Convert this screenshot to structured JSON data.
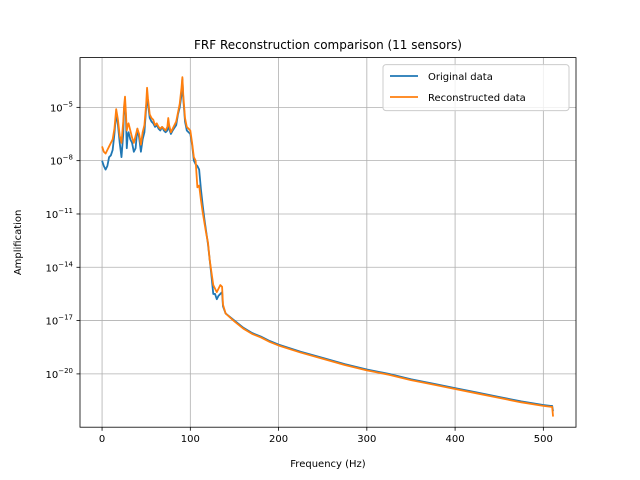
{
  "chart_data": {
    "type": "line",
    "title": "FRF Reconstruction comparison (11 sensors)",
    "xlabel": "Frequency (Hz)",
    "ylabel": "Amplification",
    "xlim": [
      -25,
      537
    ],
    "ylim_exponent": [
      -23,
      -2.2
    ],
    "yscale": "log",
    "grid": true,
    "legend_position": "top-right",
    "x_ticks": [
      {
        "value": 0,
        "label": "0"
      },
      {
        "value": 100,
        "label": "100"
      },
      {
        "value": 200,
        "label": "200"
      },
      {
        "value": 300,
        "label": "300"
      },
      {
        "value": 400,
        "label": "400"
      },
      {
        "value": 500,
        "label": "500"
      }
    ],
    "y_ticks": [
      {
        "exp": -5,
        "label": "10",
        "sup": "−5"
      },
      {
        "exp": -8,
        "label": "10",
        "sup": "−8"
      },
      {
        "exp": -11,
        "label": "10",
        "sup": "−11"
      },
      {
        "exp": -14,
        "label": "10",
        "sup": "−14"
      },
      {
        "exp": -17,
        "label": "10",
        "sup": "−17"
      },
      {
        "exp": -20,
        "label": "10",
        "sup": "−20"
      }
    ],
    "series": [
      {
        "name": "Original data",
        "color": "#1f77b4",
        "points": [
          [
            0,
            -8.0
          ],
          [
            2,
            -8.3
          ],
          [
            4,
            -8.5
          ],
          [
            6,
            -8.3
          ],
          [
            8,
            -7.8
          ],
          [
            10,
            -7.7
          ],
          [
            12,
            -7.4
          ],
          [
            14,
            -6.5
          ],
          [
            16,
            -5.3
          ],
          [
            18,
            -6.0
          ],
          [
            20,
            -7.0
          ],
          [
            22,
            -7.8
          ],
          [
            24,
            -6.5
          ],
          [
            25,
            -5.0
          ],
          [
            26,
            -4.7
          ],
          [
            27,
            -5.5
          ],
          [
            28,
            -7.3
          ],
          [
            29,
            -6.6
          ],
          [
            30,
            -6.4
          ],
          [
            32,
            -6.8
          ],
          [
            34,
            -7.0
          ],
          [
            36,
            -7.5
          ],
          [
            38,
            -7.3
          ],
          [
            40,
            -6.2
          ],
          [
            42,
            -6.7
          ],
          [
            44,
            -7.5
          ],
          [
            46,
            -6.8
          ],
          [
            48,
            -6.4
          ],
          [
            50,
            -5.0
          ],
          [
            51,
            -4.3
          ],
          [
            52,
            -4.8
          ],
          [
            54,
            -5.6
          ],
          [
            56,
            -5.8
          ],
          [
            58,
            -5.9
          ],
          [
            60,
            -6.1
          ],
          [
            62,
            -6.0
          ],
          [
            64,
            -6.2
          ],
          [
            66,
            -6.3
          ],
          [
            68,
            -6.1
          ],
          [
            70,
            -6.3
          ],
          [
            72,
            -6.4
          ],
          [
            74,
            -6.3
          ],
          [
            75,
            -5.9
          ],
          [
            76,
            -6.2
          ],
          [
            78,
            -6.5
          ],
          [
            80,
            -6.3
          ],
          [
            84,
            -6.0
          ],
          [
            86,
            -5.4
          ],
          [
            88,
            -5.0
          ],
          [
            90,
            -4.3
          ],
          [
            91,
            -3.4
          ],
          [
            92,
            -4.5
          ],
          [
            94,
            -5.8
          ],
          [
            96,
            -6.3
          ],
          [
            98,
            -6.4
          ],
          [
            100,
            -6.5
          ],
          [
            102,
            -7.1
          ],
          [
            104,
            -8.0
          ],
          [
            106,
            -8.2
          ],
          [
            108,
            -8.3
          ],
          [
            110,
            -8.5
          ],
          [
            112,
            -9.6
          ],
          [
            114,
            -10.5
          ],
          [
            116,
            -11.3
          ],
          [
            118,
            -12.0
          ],
          [
            120,
            -12.7
          ],
          [
            122,
            -13.6
          ],
          [
            124,
            -14.5
          ],
          [
            126,
            -15.5
          ],
          [
            128,
            -15.5
          ],
          [
            130,
            -15.8
          ],
          [
            132,
            -15.6
          ],
          [
            134,
            -15.5
          ],
          [
            136,
            -15.4
          ],
          [
            137,
            -16.2
          ],
          [
            140,
            -16.6
          ],
          [
            150,
            -17.0
          ],
          [
            160,
            -17.4
          ],
          [
            170,
            -17.7
          ],
          [
            180,
            -17.9
          ],
          [
            190,
            -18.15
          ],
          [
            200,
            -18.35
          ],
          [
            225,
            -18.75
          ],
          [
            250,
            -19.1
          ],
          [
            275,
            -19.45
          ],
          [
            300,
            -19.75
          ],
          [
            325,
            -20.0
          ],
          [
            350,
            -20.3
          ],
          [
            375,
            -20.55
          ],
          [
            400,
            -20.8
          ],
          [
            425,
            -21.05
          ],
          [
            450,
            -21.3
          ],
          [
            475,
            -21.55
          ],
          [
            500,
            -21.75
          ],
          [
            508,
            -21.8
          ],
          [
            510,
            -21.8
          ],
          [
            511,
            -22.1
          ]
        ]
      },
      {
        "name": "Reconstructed data",
        "color": "#ff7f0e",
        "points": [
          [
            0,
            -7.2
          ],
          [
            2,
            -7.5
          ],
          [
            4,
            -7.6
          ],
          [
            6,
            -7.4
          ],
          [
            8,
            -7.2
          ],
          [
            10,
            -7.0
          ],
          [
            12,
            -6.8
          ],
          [
            14,
            -6.2
          ],
          [
            16,
            -5.1
          ],
          [
            18,
            -5.7
          ],
          [
            20,
            -6.6
          ],
          [
            22,
            -7.0
          ],
          [
            24,
            -5.8
          ],
          [
            25,
            -4.9
          ],
          [
            26,
            -4.4
          ],
          [
            27,
            -5.3
          ],
          [
            28,
            -6.3
          ],
          [
            29,
            -6.0
          ],
          [
            30,
            -5.9
          ],
          [
            32,
            -6.3
          ],
          [
            34,
            -6.7
          ],
          [
            36,
            -7.0
          ],
          [
            38,
            -6.6
          ],
          [
            40,
            -6.2
          ],
          [
            42,
            -6.5
          ],
          [
            44,
            -7.1
          ],
          [
            46,
            -6.4
          ],
          [
            48,
            -6.0
          ],
          [
            50,
            -4.8
          ],
          [
            51,
            -3.9
          ],
          [
            52,
            -4.5
          ],
          [
            54,
            -5.4
          ],
          [
            56,
            -5.6
          ],
          [
            58,
            -5.7
          ],
          [
            60,
            -6.0
          ],
          [
            62,
            -5.9
          ],
          [
            64,
            -6.1
          ],
          [
            66,
            -6.2
          ],
          [
            68,
            -6.1
          ],
          [
            70,
            -6.2
          ],
          [
            72,
            -6.3
          ],
          [
            74,
            -6.1
          ],
          [
            75,
            -5.6
          ],
          [
            76,
            -6.0
          ],
          [
            78,
            -6.4
          ],
          [
            80,
            -6.2
          ],
          [
            84,
            -5.8
          ],
          [
            86,
            -5.3
          ],
          [
            88,
            -4.8
          ],
          [
            90,
            -3.9
          ],
          [
            91,
            -3.3
          ],
          [
            92,
            -4.3
          ],
          [
            94,
            -5.6
          ],
          [
            96,
            -6.1
          ],
          [
            98,
            -6.2
          ],
          [
            100,
            -6.3
          ],
          [
            102,
            -7.0
          ],
          [
            104,
            -7.8
          ],
          [
            106,
            -8.0
          ],
          [
            108,
            -9.5
          ],
          [
            110,
            -9.4
          ],
          [
            112,
            -10.2
          ],
          [
            114,
            -10.9
          ],
          [
            116,
            -11.5
          ],
          [
            118,
            -12.1
          ],
          [
            120,
            -12.6
          ],
          [
            122,
            -13.6
          ],
          [
            124,
            -14.3
          ],
          [
            126,
            -15.0
          ],
          [
            128,
            -15.2
          ],
          [
            130,
            -15.4
          ],
          [
            132,
            -15.2
          ],
          [
            134,
            -15.0
          ],
          [
            136,
            -15.1
          ],
          [
            137,
            -16.1
          ],
          [
            140,
            -16.6
          ],
          [
            150,
            -17.05
          ],
          [
            160,
            -17.45
          ],
          [
            170,
            -17.75
          ],
          [
            180,
            -17.95
          ],
          [
            190,
            -18.2
          ],
          [
            200,
            -18.4
          ],
          [
            225,
            -18.8
          ],
          [
            250,
            -19.15
          ],
          [
            275,
            -19.5
          ],
          [
            300,
            -19.8
          ],
          [
            325,
            -20.05
          ],
          [
            350,
            -20.35
          ],
          [
            375,
            -20.6
          ],
          [
            400,
            -20.85
          ],
          [
            425,
            -21.1
          ],
          [
            450,
            -21.35
          ],
          [
            475,
            -21.6
          ],
          [
            500,
            -21.8
          ],
          [
            508,
            -21.85
          ],
          [
            510,
            -21.85
          ],
          [
            511,
            -22.4
          ]
        ]
      }
    ]
  }
}
